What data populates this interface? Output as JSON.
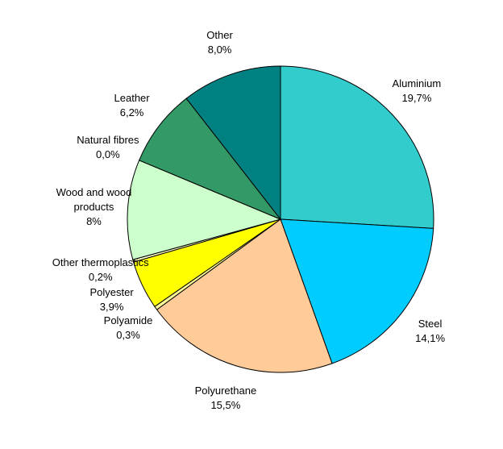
{
  "chart_data": {
    "type": "pie",
    "categories": [
      "Aluminium",
      "Steel",
      "Polyurethane",
      "Polyamide",
      "Polyester",
      "Other thermoplastics",
      "Wood and wood products",
      "Natural fibres",
      "Leather",
      "Other"
    ],
    "values": [
      19.7,
      14.1,
      15.5,
      0.3,
      3.9,
      0.2,
      8,
      0.0,
      6.2,
      8.0
    ],
    "value_labels": [
      "19,7%",
      "14,1%",
      "15,5%",
      "0,3%",
      "3,9%",
      "0,2%",
      "8%",
      "0,0%",
      "6,2%",
      "8,0%"
    ],
    "colors": [
      "#33cccc",
      "#00ccff",
      "#ffcc99",
      "#ffff99",
      "#ffff00",
      "#ffffcc",
      "#ccffcc",
      "#99cc99",
      "#339966",
      "#008080"
    ]
  }
}
